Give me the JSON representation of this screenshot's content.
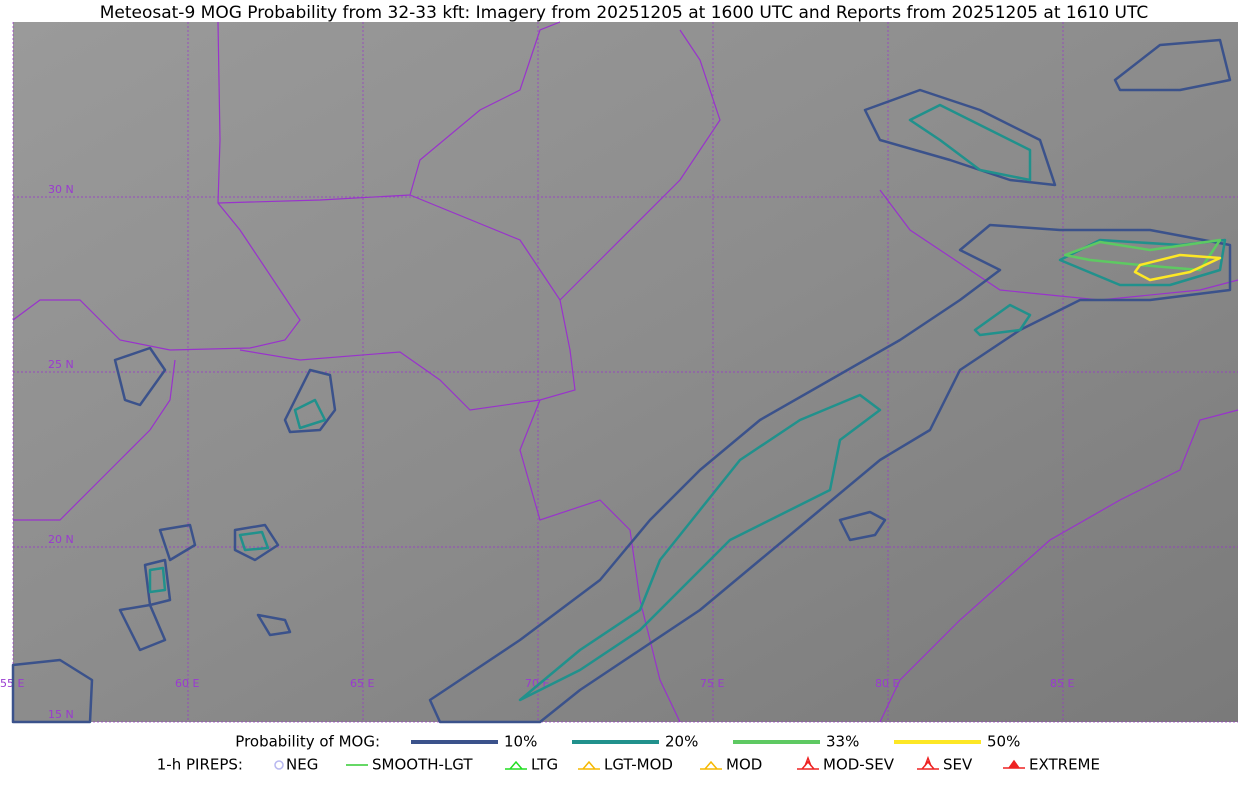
{
  "title": "Meteosat-9 MOG Probability from 32-33 kft: Imagery from 20251205 at 1600 UTC and Reports from 20251205 at 1610 UTC",
  "map": {
    "lon_labels": [
      "55 E",
      "60 E",
      "65 E",
      "70 E",
      "75 E",
      "80 E",
      "85 E"
    ],
    "lat_labels": [
      "30 N",
      "25 N",
      "20 N",
      "15 N"
    ]
  },
  "legend": {
    "probability_title": "Probability of MOG:",
    "probability_levels": [
      {
        "label": "10%",
        "color": "#3b528b"
      },
      {
        "label": "20%",
        "color": "#21918c"
      },
      {
        "label": "33%",
        "color": "#5ec962"
      },
      {
        "label": "50%",
        "color": "#fde725"
      }
    ],
    "pireps_title": "1-h PIREPS:",
    "pireps": [
      {
        "label": "NEG",
        "color": "#b8b8f0"
      },
      {
        "label": "SMOOTH-LGT",
        "color": "#33cc33"
      },
      {
        "label": "LTG",
        "color": "#22dd22"
      },
      {
        "label": "LGT-MOD",
        "color": "#f5b800"
      },
      {
        "label": "MOD",
        "color": "#f5b800"
      },
      {
        "label": "MOD-SEV",
        "color": "#ee2222"
      },
      {
        "label": "SEV",
        "color": "#ee2222"
      },
      {
        "label": "EXTREME",
        "color": "#ee2222"
      }
    ]
  }
}
